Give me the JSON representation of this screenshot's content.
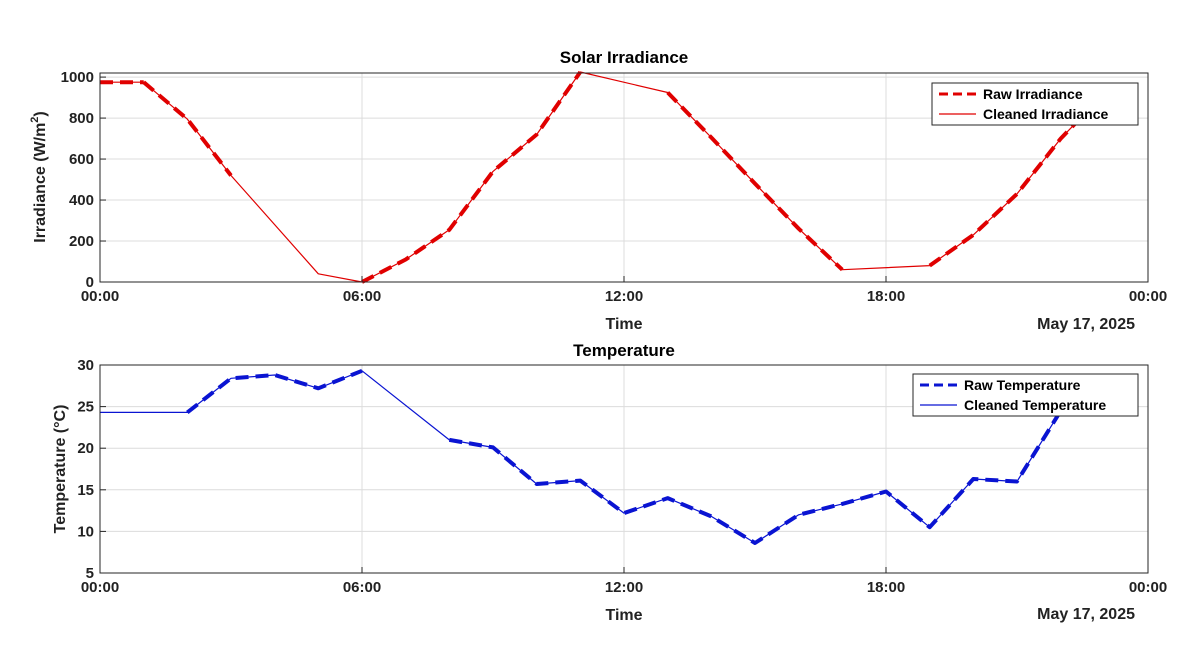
{
  "charts": [
    {
      "id": "irradiance",
      "type": "line",
      "title": "Solar Irradiance",
      "xlabel": "Time",
      "ylabel_main": "Irradiance (W/m",
      "ylabel_sup": "2",
      "ylabel_tail": ")",
      "date_label": "May 17, 2025",
      "xlim_hours": [
        0,
        24
      ],
      "ylim": [
        0,
        1020
      ],
      "yticks": [
        0,
        200,
        400,
        600,
        800,
        1000
      ],
      "xticks": [
        {
          "h": 0,
          "label": "00:00"
        },
        {
          "h": 6,
          "label": "06:00"
        },
        {
          "h": 12,
          "label": "12:00"
        },
        {
          "h": 18,
          "label": "18:00"
        },
        {
          "h": 24,
          "label": "00:00"
        }
      ],
      "grid": true,
      "legend_location": "top-right",
      "series": [
        {
          "name": "Raw Irradiance",
          "color": "#e00000",
          "style": "dashed",
          "segments": [
            [
              [
                0,
                975
              ],
              [
                1,
                975
              ]
            ],
            [
              [
                1,
                975
              ],
              [
                2,
                795
              ],
              [
                3,
                520
              ]
            ],
            [
              [
                6,
                0
              ],
              [
                7,
                110
              ],
              [
                8,
                255
              ],
              [
                9,
                540
              ],
              [
                10,
                720
              ],
              [
                11,
                1025
              ]
            ],
            [
              [
                13,
                925
              ],
              [
                14,
                705
              ],
              [
                15,
                480
              ],
              [
                16,
                260
              ],
              [
                17,
                60
              ]
            ],
            [
              [
                19,
                80
              ],
              [
                20,
                230
              ],
              [
                21,
                430
              ],
              [
                22,
                700
              ],
              [
                22.5,
                810
              ]
            ]
          ]
        },
        {
          "name": "Cleaned Irradiance",
          "color": "#e00000",
          "style": "solid",
          "points": [
            [
              0,
              975
            ],
            [
              1,
              975
            ],
            [
              2,
              795
            ],
            [
              3,
              520
            ],
            [
              5,
              40
            ],
            [
              6,
              0
            ],
            [
              7,
              110
            ],
            [
              8,
              255
            ],
            [
              9,
              540
            ],
            [
              10,
              720
            ],
            [
              11,
              1025
            ],
            [
              13,
              925
            ],
            [
              14,
              705
            ],
            [
              15,
              480
            ],
            [
              16,
              260
            ],
            [
              17,
              60
            ],
            [
              19,
              80
            ],
            [
              20,
              230
            ],
            [
              21,
              430
            ],
            [
              22,
              700
            ],
            [
              22.5,
              810
            ]
          ]
        }
      ]
    },
    {
      "id": "temperature",
      "type": "line",
      "title": "Temperature",
      "xlabel": "Time",
      "ylabel_main": "Temperature (°C)",
      "ylabel_sup": "",
      "ylabel_tail": "",
      "date_label": "May 17, 2025",
      "xlim_hours": [
        0,
        24
      ],
      "ylim": [
        5,
        30
      ],
      "yticks": [
        5,
        10,
        15,
        20,
        25,
        30
      ],
      "xticks": [
        {
          "h": 0,
          "label": "00:00"
        },
        {
          "h": 6,
          "label": "06:00"
        },
        {
          "h": 12,
          "label": "12:00"
        },
        {
          "h": 18,
          "label": "18:00"
        },
        {
          "h": 24,
          "label": "00:00"
        }
      ],
      "grid": true,
      "legend_location": "top-right",
      "series": [
        {
          "name": "Raw Temperature",
          "color": "#0a14d2",
          "style": "dashed",
          "segments": [
            [
              [
                2,
                24.3
              ],
              [
                3,
                28.4
              ],
              [
                4,
                28.8
              ],
              [
                5,
                27.2
              ],
              [
                6,
                29.3
              ]
            ],
            [
              [
                8,
                21.0
              ],
              [
                9,
                20.1
              ],
              [
                10,
                15.7
              ],
              [
                11,
                16.1
              ],
              [
                12,
                12.2
              ],
              [
                13,
                14.0
              ],
              [
                14,
                11.8
              ],
              [
                15,
                8.6
              ],
              [
                16,
                12.0
              ],
              [
                17,
                13.3
              ],
              [
                18,
                14.8
              ],
              [
                19,
                10.5
              ],
              [
                20,
                16.3
              ],
              [
                21,
                16.0
              ],
              [
                22,
                24.5
              ]
            ]
          ]
        },
        {
          "name": "Cleaned Temperature",
          "color": "#0a14d2",
          "style": "solid",
          "points": [
            [
              0,
              24.3
            ],
            [
              2,
              24.3
            ],
            [
              3,
              28.4
            ],
            [
              4,
              28.8
            ],
            [
              5,
              27.2
            ],
            [
              6,
              29.3
            ],
            [
              8,
              21.0
            ],
            [
              9,
              20.1
            ],
            [
              10,
              15.7
            ],
            [
              11,
              16.1
            ],
            [
              12,
              12.2
            ],
            [
              13,
              14.0
            ],
            [
              14,
              11.8
            ],
            [
              15,
              8.6
            ],
            [
              16,
              12.0
            ],
            [
              17,
              13.3
            ],
            [
              18,
              14.8
            ],
            [
              19,
              10.5
            ],
            [
              20,
              16.3
            ],
            [
              21,
              16.0
            ],
            [
              22,
              24.5
            ]
          ]
        }
      ]
    }
  ]
}
